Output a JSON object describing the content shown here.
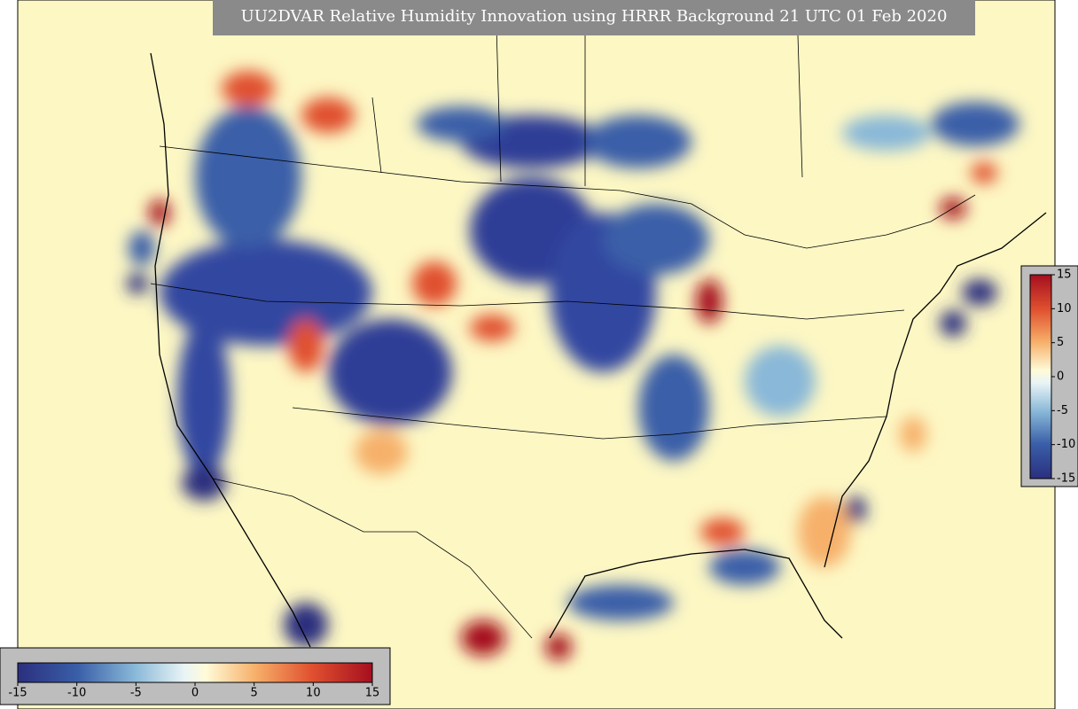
{
  "title": "UU2DVAR Relative Humidity Innovation using HRRR Background 21 UTC 01 Feb 2020",
  "colorbar_right": {
    "ticks": [
      15,
      10,
      5,
      0,
      -5,
      -10,
      -15
    ]
  },
  "colorbar_bottom": {
    "ticks": [
      -15,
      -10,
      -5,
      0,
      5,
      10,
      15
    ]
  }
}
